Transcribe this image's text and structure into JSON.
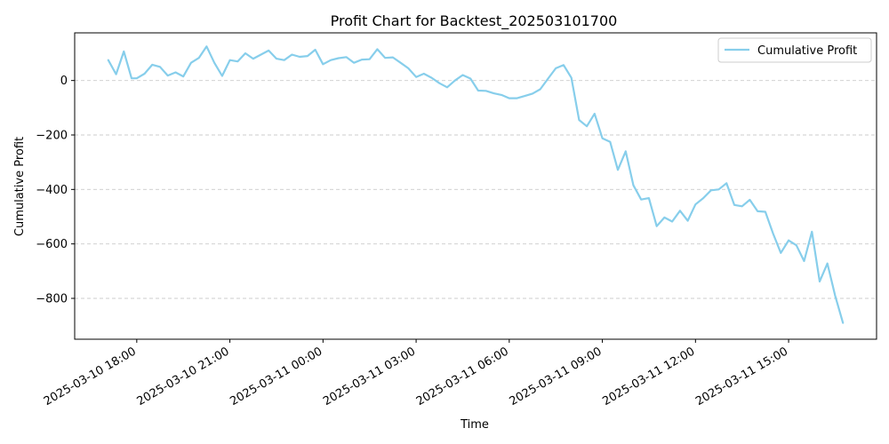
{
  "chart_data": {
    "type": "line",
    "title": "Profit Chart for Backtest_202503101700",
    "xlabel": "Time",
    "ylabel": "Cumulative Profit",
    "legend": {
      "placement": "top-right",
      "entries": [
        "Cumulative Profit"
      ]
    },
    "grid": {
      "x": false,
      "y": true,
      "style": "dashed"
    },
    "x_axis": {
      "kind": "datetime",
      "range": [
        "2025-03-10 16:00",
        "2025-03-11 17:50"
      ],
      "ticks": [
        "2025-03-10 18:00",
        "2025-03-10 21:00",
        "2025-03-11 00:00",
        "2025-03-11 03:00",
        "2025-03-11 06:00",
        "2025-03-11 09:00",
        "2025-03-11 12:00",
        "2025-03-11 15:00"
      ]
    },
    "y_axis": {
      "range": [
        -950,
        175
      ],
      "ticks": [
        -800,
        -600,
        -400,
        -200,
        0
      ],
      "tick_labels": [
        "−800",
        "−600",
        "−400",
        "−200",
        "0"
      ]
    },
    "series": [
      {
        "name": "Cumulative Profit",
        "color": "#87ceeb",
        "points": [
          [
            "2025-03-10 17:05",
            75
          ],
          [
            "2025-03-10 17:20",
            23
          ],
          [
            "2025-03-10 17:35",
            107
          ],
          [
            "2025-03-10 17:50",
            8
          ],
          [
            "2025-03-10 18:00",
            8
          ],
          [
            "2025-03-10 18:15",
            25
          ],
          [
            "2025-03-10 18:30",
            58
          ],
          [
            "2025-03-10 18:45",
            50
          ],
          [
            "2025-03-10 19:00",
            18
          ],
          [
            "2025-03-10 19:15",
            30
          ],
          [
            "2025-03-10 19:30",
            15
          ],
          [
            "2025-03-10 19:45",
            65
          ],
          [
            "2025-03-10 20:00",
            83
          ],
          [
            "2025-03-10 20:15",
            125
          ],
          [
            "2025-03-10 20:30",
            65
          ],
          [
            "2025-03-10 20:45",
            17
          ],
          [
            "2025-03-10 21:00",
            75
          ],
          [
            "2025-03-10 21:15",
            70
          ],
          [
            "2025-03-10 21:30",
            100
          ],
          [
            "2025-03-10 21:45",
            80
          ],
          [
            "2025-03-10 22:00",
            95
          ],
          [
            "2025-03-10 22:15",
            110
          ],
          [
            "2025-03-10 22:30",
            80
          ],
          [
            "2025-03-10 22:45",
            75
          ],
          [
            "2025-03-10 23:00",
            95
          ],
          [
            "2025-03-10 23:15",
            87
          ],
          [
            "2025-03-10 23:30",
            90
          ],
          [
            "2025-03-10 23:45",
            113
          ],
          [
            "2025-03-11 00:00",
            60
          ],
          [
            "2025-03-11 00:15",
            75
          ],
          [
            "2025-03-11 00:30",
            82
          ],
          [
            "2025-03-11 00:45",
            86
          ],
          [
            "2025-03-11 01:00",
            65
          ],
          [
            "2025-03-11 01:15",
            77
          ],
          [
            "2025-03-11 01:30",
            78
          ],
          [
            "2025-03-11 01:45",
            115
          ],
          [
            "2025-03-11 02:00",
            83
          ],
          [
            "2025-03-11 02:15",
            85
          ],
          [
            "2025-03-11 02:30",
            65
          ],
          [
            "2025-03-11 02:45",
            45
          ],
          [
            "2025-03-11 03:00",
            13
          ],
          [
            "2025-03-11 03:15",
            25
          ],
          [
            "2025-03-11 03:30",
            10
          ],
          [
            "2025-03-11 03:45",
            -10
          ],
          [
            "2025-03-11 04:00",
            -25
          ],
          [
            "2025-03-11 04:15",
            0
          ],
          [
            "2025-03-11 04:30",
            20
          ],
          [
            "2025-03-11 04:45",
            7
          ],
          [
            "2025-03-11 05:00",
            -37
          ],
          [
            "2025-03-11 05:15",
            -38
          ],
          [
            "2025-03-11 05:30",
            -47
          ],
          [
            "2025-03-11 05:45",
            -53
          ],
          [
            "2025-03-11 06:00",
            -65
          ],
          [
            "2025-03-11 06:15",
            -65
          ],
          [
            "2025-03-11 06:30",
            -57
          ],
          [
            "2025-03-11 06:45",
            -48
          ],
          [
            "2025-03-11 07:00",
            -32
          ],
          [
            "2025-03-11 07:15",
            7
          ],
          [
            "2025-03-11 07:30",
            45
          ],
          [
            "2025-03-11 07:45",
            57
          ],
          [
            "2025-03-11 08:00",
            10
          ],
          [
            "2025-03-11 08:15",
            -145
          ],
          [
            "2025-03-11 08:30",
            -168
          ],
          [
            "2025-03-11 08:45",
            -122
          ],
          [
            "2025-03-11 09:00",
            -212
          ],
          [
            "2025-03-11 09:15",
            -225
          ],
          [
            "2025-03-11 09:30",
            -328
          ],
          [
            "2025-03-11 09:45",
            -260
          ],
          [
            "2025-03-11 10:00",
            -385
          ],
          [
            "2025-03-11 10:15",
            -437
          ],
          [
            "2025-03-11 10:30",
            -432
          ],
          [
            "2025-03-11 10:45",
            -535
          ],
          [
            "2025-03-11 11:00",
            -503
          ],
          [
            "2025-03-11 11:15",
            -518
          ],
          [
            "2025-03-11 11:30",
            -478
          ],
          [
            "2025-03-11 11:45",
            -515
          ],
          [
            "2025-03-11 12:00",
            -455
          ],
          [
            "2025-03-11 12:15",
            -432
          ],
          [
            "2025-03-11 12:30",
            -403
          ],
          [
            "2025-03-11 12:45",
            -400
          ],
          [
            "2025-03-11 13:00",
            -377
          ],
          [
            "2025-03-11 13:15",
            -457
          ],
          [
            "2025-03-11 13:30",
            -462
          ],
          [
            "2025-03-11 13:45",
            -438
          ],
          [
            "2025-03-11 14:00",
            -480
          ],
          [
            "2025-03-11 14:15",
            -482
          ],
          [
            "2025-03-11 14:30",
            -562
          ],
          [
            "2025-03-11 14:45",
            -633
          ],
          [
            "2025-03-11 15:00",
            -587
          ],
          [
            "2025-03-11 15:15",
            -605
          ],
          [
            "2025-03-11 15:30",
            -663
          ],
          [
            "2025-03-11 15:45",
            -555
          ],
          [
            "2025-03-11 16:00",
            -738
          ],
          [
            "2025-03-11 16:15",
            -672
          ],
          [
            "2025-03-11 16:30",
            -790
          ],
          [
            "2025-03-11 16:45",
            -890
          ]
        ]
      }
    ]
  }
}
